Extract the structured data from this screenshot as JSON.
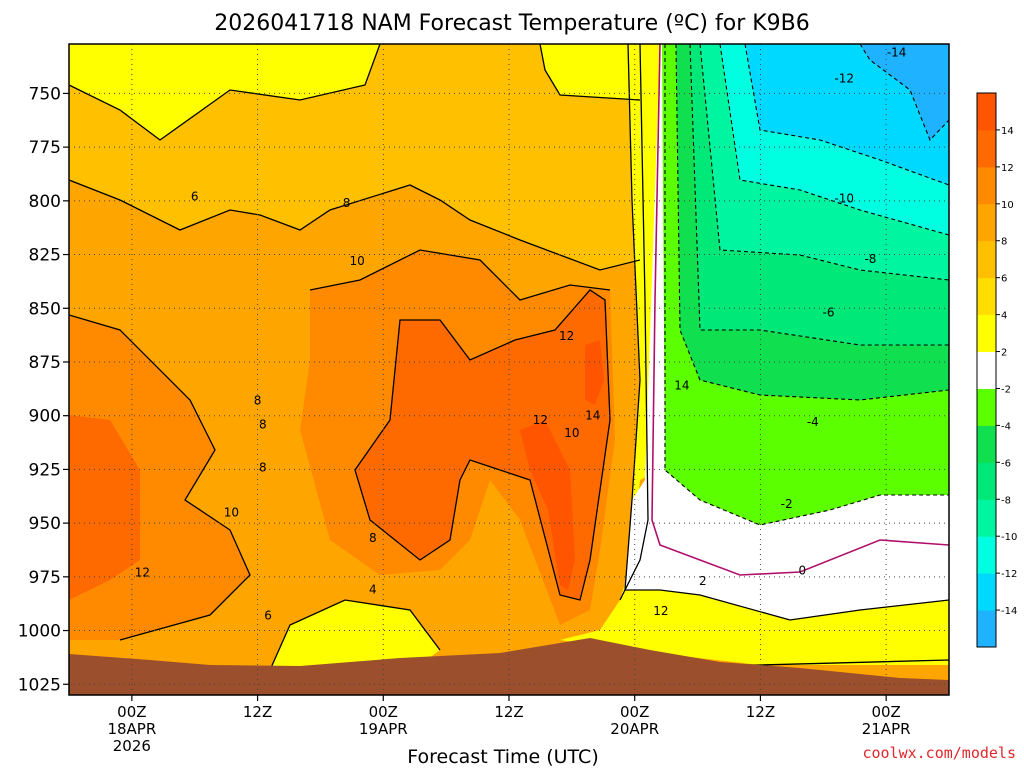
{
  "title": "2026041718 NAM Forecast Temperature (ºC) for K9B6",
  "credit": "coolwx.com/models",
  "colors": {
    "ground": "#9b4f2c",
    "zero_contour": "#b0106b",
    "bands": [
      "#1fb2ff",
      "#00d9ff",
      "#00ffe0",
      "#00f5a0",
      "#00e878",
      "#10e050",
      "#5cff00",
      "#ffffff",
      "#ffff00",
      "#ffde00",
      "#ffc000",
      "#ffa500",
      "#ff8a00",
      "#ff6a00",
      "#ff5500"
    ]
  },
  "chart_data": {
    "type": "heatmap",
    "title": "2026041718 NAM Forecast Temperature (ºC) for K9B6",
    "xlabel": "Forecast Time (UTC)",
    "ylabel": "",
    "x_ticks": [
      {
        "value": 6,
        "lines": [
          "00Z",
          "18APR",
          "2026"
        ]
      },
      {
        "value": 18,
        "lines": [
          "12Z"
        ]
      },
      {
        "value": 30,
        "lines": [
          "00Z",
          "19APR"
        ]
      },
      {
        "value": 42,
        "lines": [
          "12Z"
        ]
      },
      {
        "value": 54,
        "lines": [
          "00Z",
          "20APR"
        ]
      },
      {
        "value": 66,
        "lines": [
          "12Z"
        ]
      },
      {
        "value": 78,
        "lines": [
          "00Z",
          "21APR"
        ]
      }
    ],
    "xlim": [
      0,
      84
    ],
    "y_ticks": [
      750,
      775,
      800,
      825,
      850,
      875,
      900,
      925,
      950,
      975,
      1000,
      1025
    ],
    "ylim": [
      1030,
      727
    ],
    "grid": true,
    "colorbar": {
      "levels": [
        -16,
        -14,
        -12,
        -10,
        -8,
        -6,
        -4,
        -2,
        2,
        4,
        6,
        8,
        10,
        12,
        14,
        16
      ],
      "tick_labels": [
        "-14",
        "-12",
        "-10",
        "-8",
        "-6",
        "-4",
        "-2",
        "2",
        "4",
        "6",
        "8",
        "10",
        "12",
        "14"
      ]
    },
    "contour_labels": [
      {
        "text": "-14",
        "x": 79,
        "y": 731
      },
      {
        "text": "-12",
        "x": 74,
        "y": 743
      },
      {
        "text": "-10",
        "x": 74,
        "y": 799
      },
      {
        "text": "-8",
        "x": 76.5,
        "y": 827
      },
      {
        "text": "6",
        "x": 12,
        "y": 798
      },
      {
        "text": "8",
        "x": 26.5,
        "y": 801
      },
      {
        "text": "10",
        "x": 27.5,
        "y": 828
      },
      {
        "text": "-6",
        "x": 72.5,
        "y": 852
      },
      {
        "text": "12",
        "x": 47.5,
        "y": 863
      },
      {
        "text": "14",
        "x": 58.5,
        "y": 886
      },
      {
        "text": "8",
        "x": 18,
        "y": 893
      },
      {
        "text": "8",
        "x": 18.5,
        "y": 904
      },
      {
        "text": "12",
        "x": 45,
        "y": 902
      },
      {
        "text": "14",
        "x": 50,
        "y": 900
      },
      {
        "text": "-4",
        "x": 71,
        "y": 903
      },
      {
        "text": "10",
        "x": 48,
        "y": 908
      },
      {
        "text": "8",
        "x": 18.5,
        "y": 924
      },
      {
        "text": "-2",
        "x": 68.5,
        "y": 941
      },
      {
        "text": "10",
        "x": 15.5,
        "y": 945
      },
      {
        "text": "8",
        "x": 29,
        "y": 957
      },
      {
        "text": "12",
        "x": 7,
        "y": 973
      },
      {
        "text": "0",
        "x": 70,
        "y": 972
      },
      {
        "text": "2",
        "x": 60.5,
        "y": 977
      },
      {
        "text": "4",
        "x": 29,
        "y": 981
      },
      {
        "text": "6",
        "x": 19,
        "y": 993
      },
      {
        "text": "12",
        "x": 56.5,
        "y": 991
      }
    ]
  }
}
